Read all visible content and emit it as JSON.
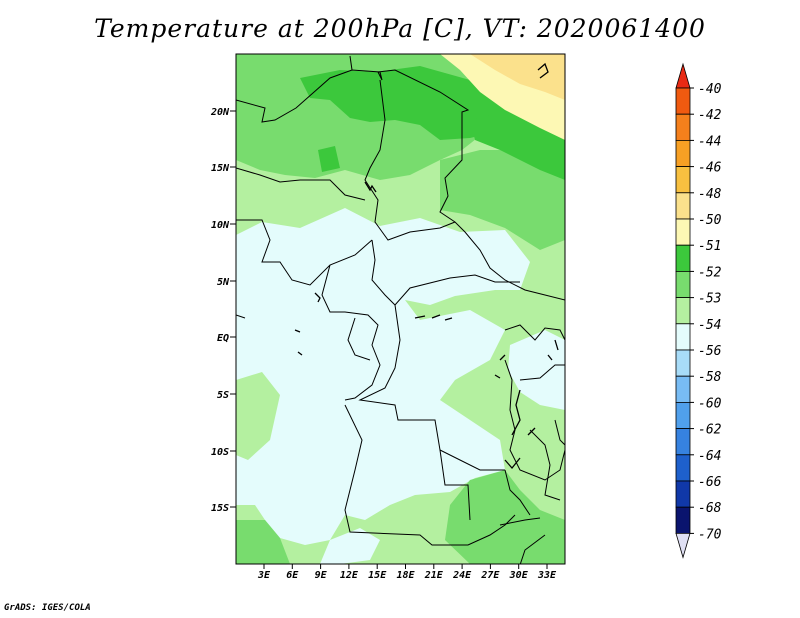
{
  "title": "Temperature at 200hPa [C], VT: 2020061400",
  "credit": "GrADS: IGES/COLA",
  "lat_labels": [
    "20N",
    "15N",
    "10N",
    "5N",
    "EQ",
    "5S",
    "10S",
    "15S"
  ],
  "lon_labels": [
    "3E",
    "6E",
    "9E",
    "12E",
    "15E",
    "18E",
    "21E",
    "24E",
    "27E",
    "30E",
    "33E"
  ],
  "colorbar": {
    "labels": [
      "-40",
      "-42",
      "-44",
      "-46",
      "-48",
      "-50",
      "-51",
      "-52",
      "-53",
      "-54",
      "-56",
      "-58",
      "-60",
      "-62",
      "-64",
      "-66",
      "-68",
      "-70"
    ],
    "colors": [
      "#e82a14",
      "#f05a10",
      "#f5801c",
      "#f7a024",
      "#f8c040",
      "#fbe18c",
      "#fdf8b4",
      "#3cc83c",
      "#78dc6e",
      "#b4f0a0",
      "#e4fcfc",
      "#a8dcf8",
      "#78bcf4",
      "#50a0ec",
      "#3682e0",
      "#1e60cc",
      "#1038a8",
      "#0a146e"
    ]
  },
  "map_colors": {
    "cyan": "#e4fcfc",
    "light_green": "#b4f0a0",
    "mid_green": "#78dc6e",
    "dark_green": "#3cc83c",
    "pale_yellow": "#fdf8b4",
    "yellow": "#fbe18c"
  }
}
